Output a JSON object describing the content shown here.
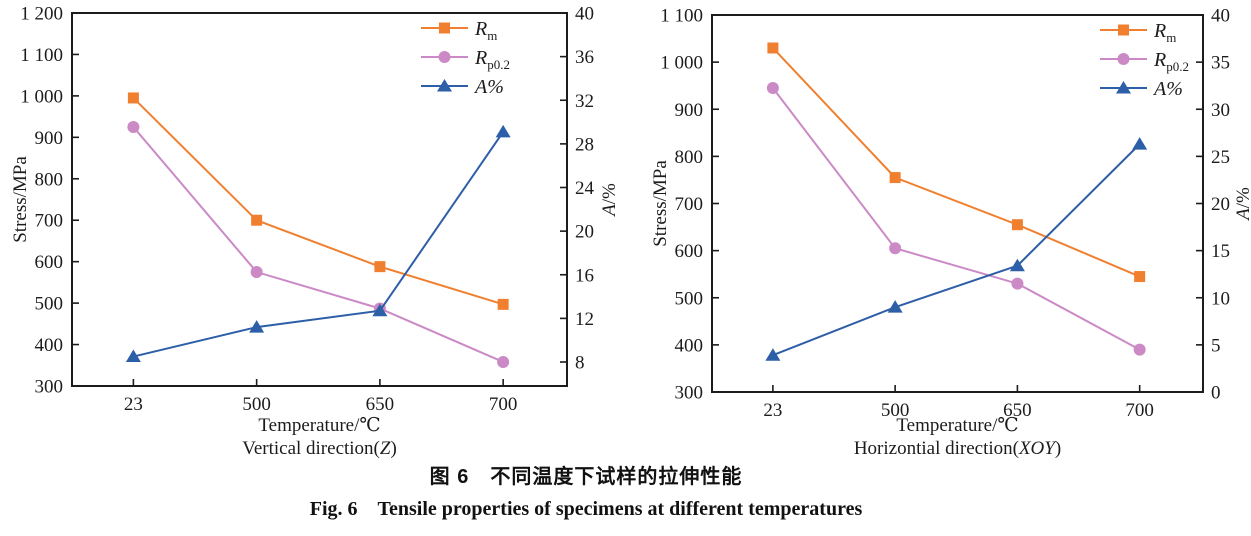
{
  "figure": {
    "caption_zh": "图 6　不同温度下试样的拉伸性能",
    "caption_en": "Fig. 6　Tensile properties of specimens at different temperatures"
  },
  "chart_data": [
    {
      "type": "line",
      "title": "",
      "xlabel": "Temperature/℃",
      "direction": {
        "prefix": "Vertical direction(",
        "italic": "Z",
        "suffix": ")"
      },
      "ylabel_left": "Stress/MPa",
      "ylabel_right": {
        "italic": "A",
        "rest": "/%"
      },
      "categories": [
        "23",
        "500",
        "650",
        "700"
      ],
      "y_left_axis": {
        "min": 300,
        "max": 1200,
        "ticks": [
          300,
          400,
          500,
          600,
          700,
          800,
          900,
          1000,
          1100,
          1200
        ],
        "labels": [
          "300",
          "400",
          "500",
          "600",
          "700",
          "800",
          "900",
          "1 000",
          "1 100",
          "1 200"
        ]
      },
      "y_right_axis": {
        "min": 5.8,
        "max": 40,
        "ticks": [
          8,
          12,
          16,
          20,
          24,
          28,
          32,
          36,
          40
        ],
        "labels": [
          "8",
          "12",
          "16",
          "20",
          "24",
          "28",
          "32",
          "36",
          "40"
        ]
      },
      "grid": false,
      "legend_position": "top-right",
      "series": [
        {
          "id": "Rm",
          "legend": {
            "main": "R",
            "sub": "m"
          },
          "axis": "left",
          "marker": "square",
          "color": "#F0802F",
          "values": [
            995,
            700,
            588,
            497
          ]
        },
        {
          "id": "Rp0.2",
          "legend": {
            "main": "R",
            "sub": "p0.2"
          },
          "axis": "left",
          "marker": "circle",
          "color": "#CB8AC6",
          "values": [
            925,
            575,
            487,
            358
          ]
        },
        {
          "id": "A%",
          "legend": {
            "main": "A%",
            "sub": ""
          },
          "axis": "right",
          "marker": "triangle",
          "color": "#2D5EA8",
          "values": [
            8.5,
            11.2,
            12.7,
            29.1
          ]
        }
      ]
    },
    {
      "type": "line",
      "title": "",
      "xlabel": "Temperature/℃",
      "direction": {
        "prefix": "Horizontial direction(",
        "italic": "XOY",
        "suffix": ")"
      },
      "ylabel_left": "Stress/MPa",
      "ylabel_right": {
        "italic": "A",
        "rest": "/%"
      },
      "categories": [
        "23",
        "500",
        "650",
        "700"
      ],
      "y_left_axis": {
        "min": 300,
        "max": 1100,
        "ticks": [
          300,
          400,
          500,
          600,
          700,
          800,
          900,
          1000,
          1100
        ],
        "labels": [
          "300",
          "400",
          "500",
          "600",
          "700",
          "800",
          "900",
          "1 000",
          "1 100"
        ]
      },
      "y_right_axis": {
        "min": 0,
        "max": 40,
        "ticks": [
          0,
          5,
          10,
          15,
          20,
          25,
          30,
          35,
          40
        ],
        "labels": [
          "0",
          "5",
          "10",
          "15",
          "20",
          "25",
          "30",
          "35",
          "40"
        ]
      },
      "grid": false,
      "legend_position": "top-right",
      "series": [
        {
          "id": "Rm",
          "legend": {
            "main": "R",
            "sub": "m"
          },
          "axis": "left",
          "marker": "square",
          "color": "#F0802F",
          "values": [
            1030,
            755,
            655,
            545
          ]
        },
        {
          "id": "Rp0.2",
          "legend": {
            "main": "R",
            "sub": "p0.2"
          },
          "axis": "left",
          "marker": "circle",
          "color": "#CB8AC6",
          "values": [
            945,
            605,
            530,
            390
          ]
        },
        {
          "id": "A%",
          "legend": {
            "main": "A%",
            "sub": ""
          },
          "axis": "right",
          "marker": "triangle",
          "color": "#2D5EA8",
          "values": [
            3.9,
            9.0,
            13.4,
            26.3
          ]
        }
      ]
    }
  ]
}
